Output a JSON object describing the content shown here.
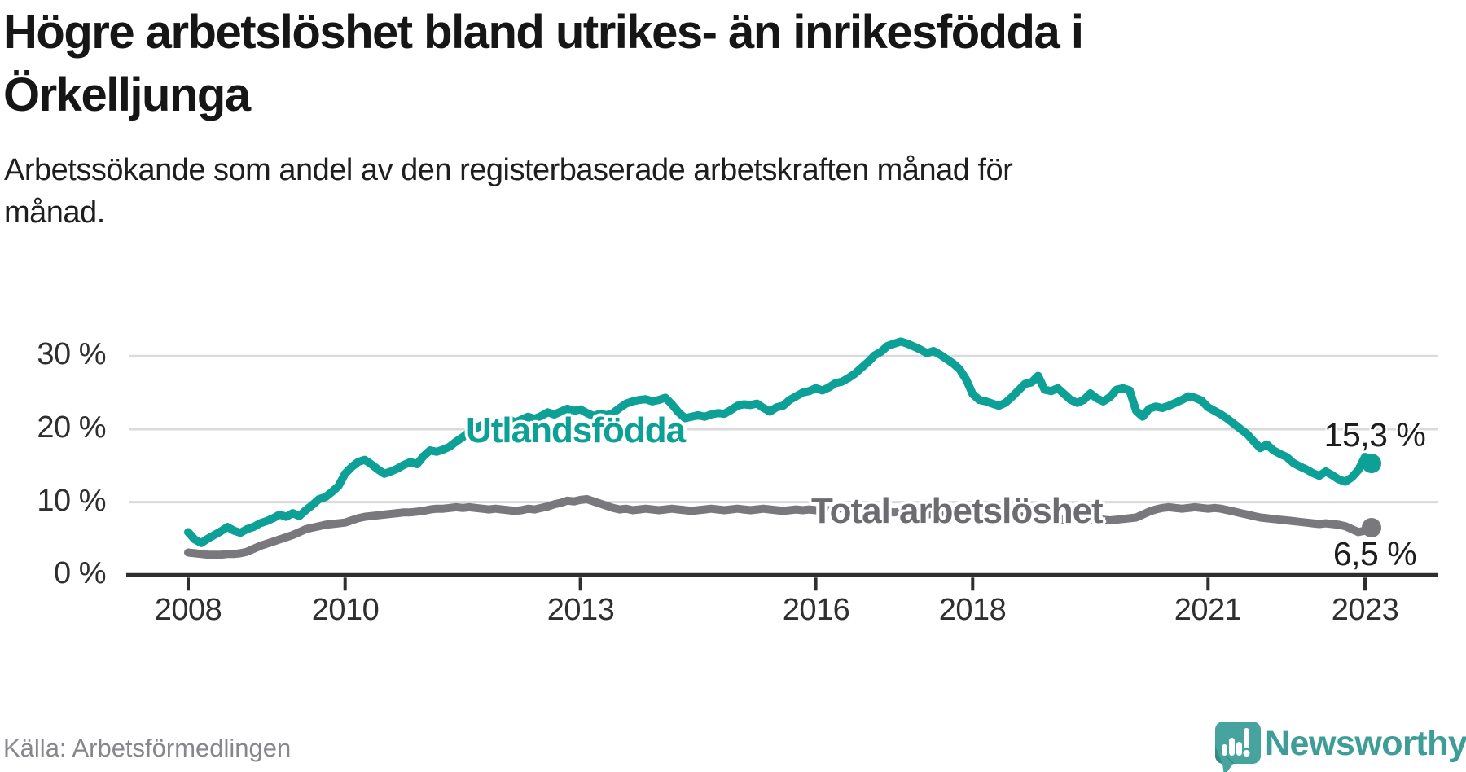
{
  "header": {
    "title_lines": [
      "Högre arbetslöshet bland utrikes- än inrikesfödda i",
      "Örkelljunga"
    ],
    "subtitle_lines": [
      "Arbetssökande som andel av den registerbaserade arbetskraften månad för",
      "månad."
    ]
  },
  "chart_data": {
    "type": "line",
    "title": "Högre arbetslöshet bland utrikes- än inrikesfödda i Örkelljunga",
    "subtitle": "Arbetssökande som andel av den registerbaserade arbetskraften månad för månad.",
    "frequency": "monthly",
    "x_start": "2008-01",
    "x_end": "2023-02",
    "ylim": [
      0,
      33
    ],
    "grid": "horizontal",
    "legend_position": "inline-labels",
    "ytick_values": [
      0,
      10,
      20,
      30
    ],
    "ytick_labels": [
      "0 %",
      "10 %",
      "20 %",
      "30 %"
    ],
    "xtick_years": [
      2008,
      2010,
      2013,
      2016,
      2018,
      2021,
      2023
    ],
    "xtick_labels": [
      "2008",
      "2010",
      "2013",
      "2016",
      "2018",
      "2021",
      "2023"
    ],
    "axis_color": "#2e2e2e",
    "gridline_color": "#dadada",
    "series": [
      {
        "name": "Utlandsfödda",
        "color": "#0da096",
        "label_color": "#0da096",
        "end_label": "15,3 %",
        "end_value": 15.3,
        "values": [
          5.9,
          4.9,
          4.4,
          5.0,
          5.5,
          6.0,
          6.6,
          6.1,
          5.8,
          6.3,
          6.6,
          7.1,
          7.4,
          7.8,
          8.3,
          8.0,
          8.5,
          8.1,
          8.9,
          9.6,
          10.4,
          10.7,
          11.4,
          12.2,
          13.9,
          14.8,
          15.5,
          15.8,
          15.2,
          14.5,
          13.9,
          14.2,
          14.6,
          15.1,
          15.5,
          15.2,
          16.3,
          17.1,
          16.9,
          17.2,
          17.6,
          18.3,
          18.9,
          19.6,
          20.1,
          20.6,
          20.9,
          20.7,
          21.0,
          21.4,
          20.9,
          21.3,
          21.7,
          21.4,
          21.8,
          22.3,
          22.0,
          22.4,
          22.8,
          22.5,
          22.7,
          22.2,
          21.8,
          22.1,
          21.9,
          22.2,
          22.9,
          23.5,
          23.8,
          24.0,
          24.1,
          23.8,
          24.0,
          24.3,
          23.4,
          22.3,
          21.5,
          21.7,
          21.9,
          21.7,
          22.0,
          22.2,
          22.1,
          22.6,
          23.2,
          23.4,
          23.3,
          23.5,
          22.9,
          22.4,
          23.0,
          23.2,
          24.0,
          24.5,
          25.0,
          25.2,
          25.6,
          25.3,
          25.7,
          26.3,
          26.5,
          27.0,
          27.6,
          28.4,
          29.2,
          30.1,
          30.6,
          31.4,
          31.7,
          32.0,
          31.7,
          31.3,
          30.9,
          30.4,
          30.7,
          30.2,
          29.6,
          29.0,
          28.2,
          26.8,
          24.8,
          24.0,
          23.8,
          23.5,
          23.2,
          23.6,
          24.4,
          25.3,
          26.2,
          26.4,
          27.3,
          25.4,
          25.2,
          25.6,
          24.8,
          24.0,
          23.6,
          24.0,
          24.9,
          24.2,
          23.8,
          24.4,
          25.4,
          25.6,
          25.3,
          22.5,
          21.7,
          22.8,
          23.1,
          22.9,
          23.2,
          23.6,
          24.0,
          24.5,
          24.3,
          23.9,
          23.0,
          22.5,
          22.0,
          21.4,
          20.7,
          20.0,
          19.3,
          18.3,
          17.4,
          17.9,
          17.1,
          16.6,
          16.2,
          15.4,
          14.9,
          14.5,
          14.0,
          13.6,
          14.2,
          13.7,
          13.1,
          12.8,
          13.4,
          14.4,
          16.2,
          15.3
        ]
      },
      {
        "name": "Total arbetslöshet",
        "color": "#78787d",
        "label_color": "#6b6b70",
        "end_label": "6,5 %",
        "end_value": 6.5,
        "values": [
          3.1,
          3.0,
          2.9,
          2.8,
          2.8,
          2.8,
          2.9,
          2.9,
          3.0,
          3.2,
          3.6,
          4.0,
          4.3,
          4.6,
          4.9,
          5.2,
          5.5,
          5.9,
          6.3,
          6.5,
          6.7,
          6.9,
          7.0,
          7.1,
          7.2,
          7.5,
          7.8,
          8.0,
          8.1,
          8.2,
          8.3,
          8.4,
          8.5,
          8.6,
          8.6,
          8.7,
          8.8,
          9.0,
          9.1,
          9.1,
          9.2,
          9.3,
          9.2,
          9.3,
          9.2,
          9.1,
          9.0,
          9.1,
          9.0,
          8.9,
          8.8,
          8.9,
          9.1,
          9.0,
          9.2,
          9.4,
          9.7,
          9.9,
          10.2,
          10.1,
          10.3,
          10.4,
          10.1,
          9.8,
          9.5,
          9.2,
          9.0,
          9.1,
          8.9,
          9.0,
          9.1,
          9.0,
          8.9,
          9.0,
          9.1,
          9.0,
          8.9,
          8.8,
          8.9,
          9.0,
          9.1,
          9.0,
          8.9,
          9.0,
          9.1,
          9.0,
          8.9,
          9.0,
          9.1,
          9.0,
          8.9,
          8.8,
          8.9,
          9.0,
          8.9,
          9.0,
          8.9,
          8.8,
          8.9,
          9.0,
          9.2,
          9.1,
          9.0,
          8.9,
          8.8,
          8.7,
          8.8,
          8.7,
          8.6,
          8.7,
          8.6,
          8.5,
          8.4,
          8.3,
          8.4,
          8.5,
          8.4,
          8.3,
          8.2,
          8.1,
          8.0,
          7.9,
          7.8,
          7.7,
          7.8,
          7.9,
          8.0,
          8.1,
          8.0,
          7.9,
          7.8,
          7.9,
          7.8,
          7.7,
          7.6,
          7.7,
          7.6,
          7.5,
          7.6,
          7.7,
          7.6,
          7.5,
          7.6,
          7.7,
          7.8,
          7.9,
          8.3,
          8.7,
          9.0,
          9.2,
          9.3,
          9.2,
          9.1,
          9.2,
          9.3,
          9.2,
          9.1,
          9.2,
          9.1,
          8.9,
          8.7,
          8.5,
          8.3,
          8.1,
          7.9,
          7.8,
          7.7,
          7.6,
          7.5,
          7.4,
          7.3,
          7.2,
          7.1,
          7.0,
          7.1,
          7.0,
          6.9,
          6.7,
          6.3,
          5.9,
          6.1,
          6.5
        ]
      }
    ]
  },
  "footer": {
    "source": "Källa: Arbetsförmedlingen",
    "brand": "Newsworthy",
    "brand_color": "#3f9d97",
    "brand_icon": "speech-bubble-bar-chart"
  }
}
